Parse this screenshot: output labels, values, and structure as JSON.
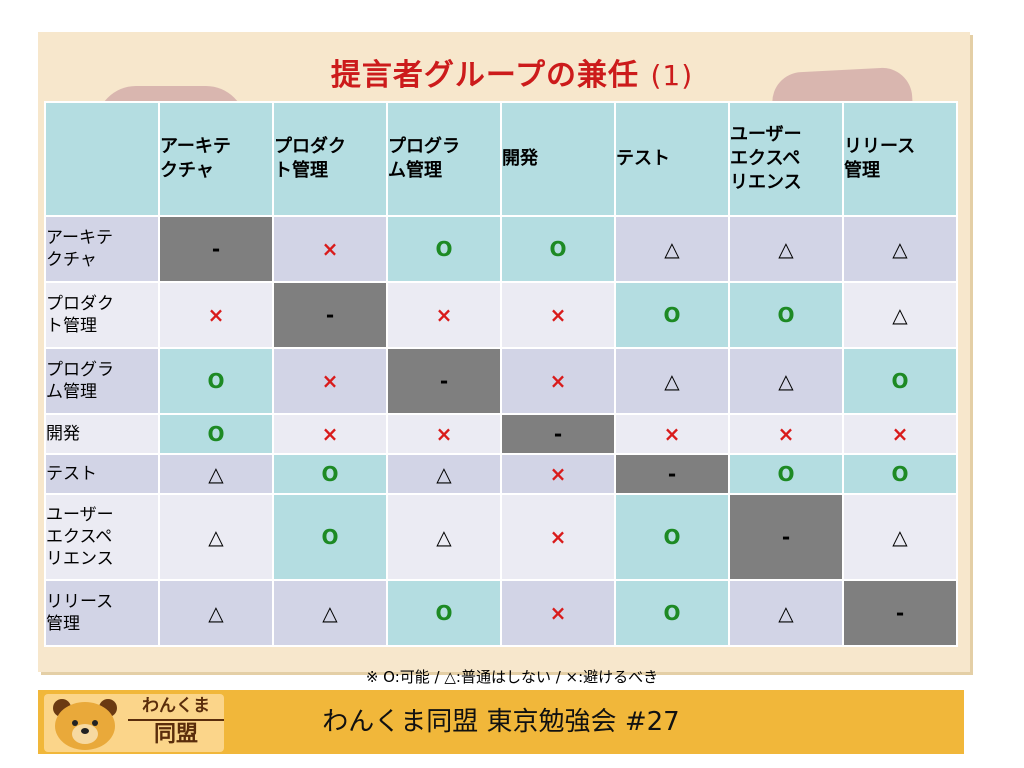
{
  "title": {
    "main": "提言者グループの兼任",
    "suffix": "(1)"
  },
  "columns": [
    "アーキテ\nクチャ",
    "プロダク\nト管理",
    "プログラ\nム管理",
    "開発",
    "テスト",
    "ユーザー\nエクスペ\nリエンス",
    "リリース\n管理"
  ],
  "rows": [
    {
      "label": "アーキテ\nクチャ",
      "cells": [
        {
          "v": "-",
          "k": "dash",
          "bg": "dark"
        },
        {
          "v": "×",
          "k": "x",
          "bg": "mid"
        },
        {
          "v": "O",
          "k": "o",
          "bg": "teal"
        },
        {
          "v": "O",
          "k": "o",
          "bg": "teal"
        },
        {
          "v": "△",
          "k": "t",
          "bg": "mid"
        },
        {
          "v": "△",
          "k": "t",
          "bg": "mid"
        },
        {
          "v": "△",
          "k": "t",
          "bg": "mid"
        }
      ]
    },
    {
      "label": "プロダク\nト管理",
      "cells": [
        {
          "v": "×",
          "k": "x",
          "bg": "light"
        },
        {
          "v": "-",
          "k": "dash",
          "bg": "dark"
        },
        {
          "v": "×",
          "k": "x",
          "bg": "light"
        },
        {
          "v": "×",
          "k": "x",
          "bg": "light"
        },
        {
          "v": "O",
          "k": "o",
          "bg": "teal"
        },
        {
          "v": "O",
          "k": "o",
          "bg": "teal"
        },
        {
          "v": "△",
          "k": "t",
          "bg": "light"
        }
      ]
    },
    {
      "label": "プログラ\nム管理",
      "cells": [
        {
          "v": "O",
          "k": "o",
          "bg": "teal"
        },
        {
          "v": "×",
          "k": "x",
          "bg": "mid"
        },
        {
          "v": "-",
          "k": "dash",
          "bg": "dark"
        },
        {
          "v": "×",
          "k": "x",
          "bg": "mid"
        },
        {
          "v": "△",
          "k": "t",
          "bg": "mid"
        },
        {
          "v": "△",
          "k": "t",
          "bg": "mid"
        },
        {
          "v": "O",
          "k": "o",
          "bg": "teal"
        }
      ]
    },
    {
      "label": "開発",
      "cells": [
        {
          "v": "O",
          "k": "o",
          "bg": "teal"
        },
        {
          "v": "×",
          "k": "x",
          "bg": "light"
        },
        {
          "v": "×",
          "k": "x",
          "bg": "light"
        },
        {
          "v": "-",
          "k": "dash",
          "bg": "dark"
        },
        {
          "v": "×",
          "k": "x",
          "bg": "light"
        },
        {
          "v": "×",
          "k": "x",
          "bg": "light"
        },
        {
          "v": "×",
          "k": "x",
          "bg": "light"
        }
      ]
    },
    {
      "label": "テスト",
      "cells": [
        {
          "v": "△",
          "k": "t",
          "bg": "mid"
        },
        {
          "v": "O",
          "k": "o",
          "bg": "teal"
        },
        {
          "v": "△",
          "k": "t",
          "bg": "mid"
        },
        {
          "v": "×",
          "k": "x",
          "bg": "mid"
        },
        {
          "v": "-",
          "k": "dash",
          "bg": "dark"
        },
        {
          "v": "O",
          "k": "o",
          "bg": "teal"
        },
        {
          "v": "O",
          "k": "o",
          "bg": "teal"
        }
      ]
    },
    {
      "label": "ユーザー\nエクスペ\nリエンス",
      "cells": [
        {
          "v": "△",
          "k": "t",
          "bg": "light"
        },
        {
          "v": "O",
          "k": "o",
          "bg": "teal"
        },
        {
          "v": "△",
          "k": "t",
          "bg": "light"
        },
        {
          "v": "×",
          "k": "x",
          "bg": "light"
        },
        {
          "v": "O",
          "k": "o",
          "bg": "teal"
        },
        {
          "v": "-",
          "k": "dash",
          "bg": "dark"
        },
        {
          "v": "△",
          "k": "t",
          "bg": "light"
        }
      ]
    },
    {
      "label": "リリース\n管理",
      "cells": [
        {
          "v": "△",
          "k": "t",
          "bg": "mid"
        },
        {
          "v": "△",
          "k": "t",
          "bg": "mid"
        },
        {
          "v": "O",
          "k": "o",
          "bg": "teal"
        },
        {
          "v": "×",
          "k": "x",
          "bg": "mid"
        },
        {
          "v": "O",
          "k": "o",
          "bg": "teal"
        },
        {
          "v": "△",
          "k": "t",
          "bg": "mid"
        },
        {
          "v": "-",
          "k": "dash",
          "bg": "dark"
        }
      ]
    }
  ],
  "legend_note": "※ O:可能 / △:普通はしない / ×:避けるべき",
  "footer": {
    "text": "わんくま同盟 東京勉強会 #27",
    "logo_line1": "わんくま",
    "logo_line2": "同盟"
  },
  "colors": {
    "title": "#cc1b1b",
    "circle": "#1d8a24",
    "cross": "#d91b1b",
    "diagonal": "#7f7f7f",
    "header": "#b4dde1",
    "footer": "#f1b73a"
  }
}
